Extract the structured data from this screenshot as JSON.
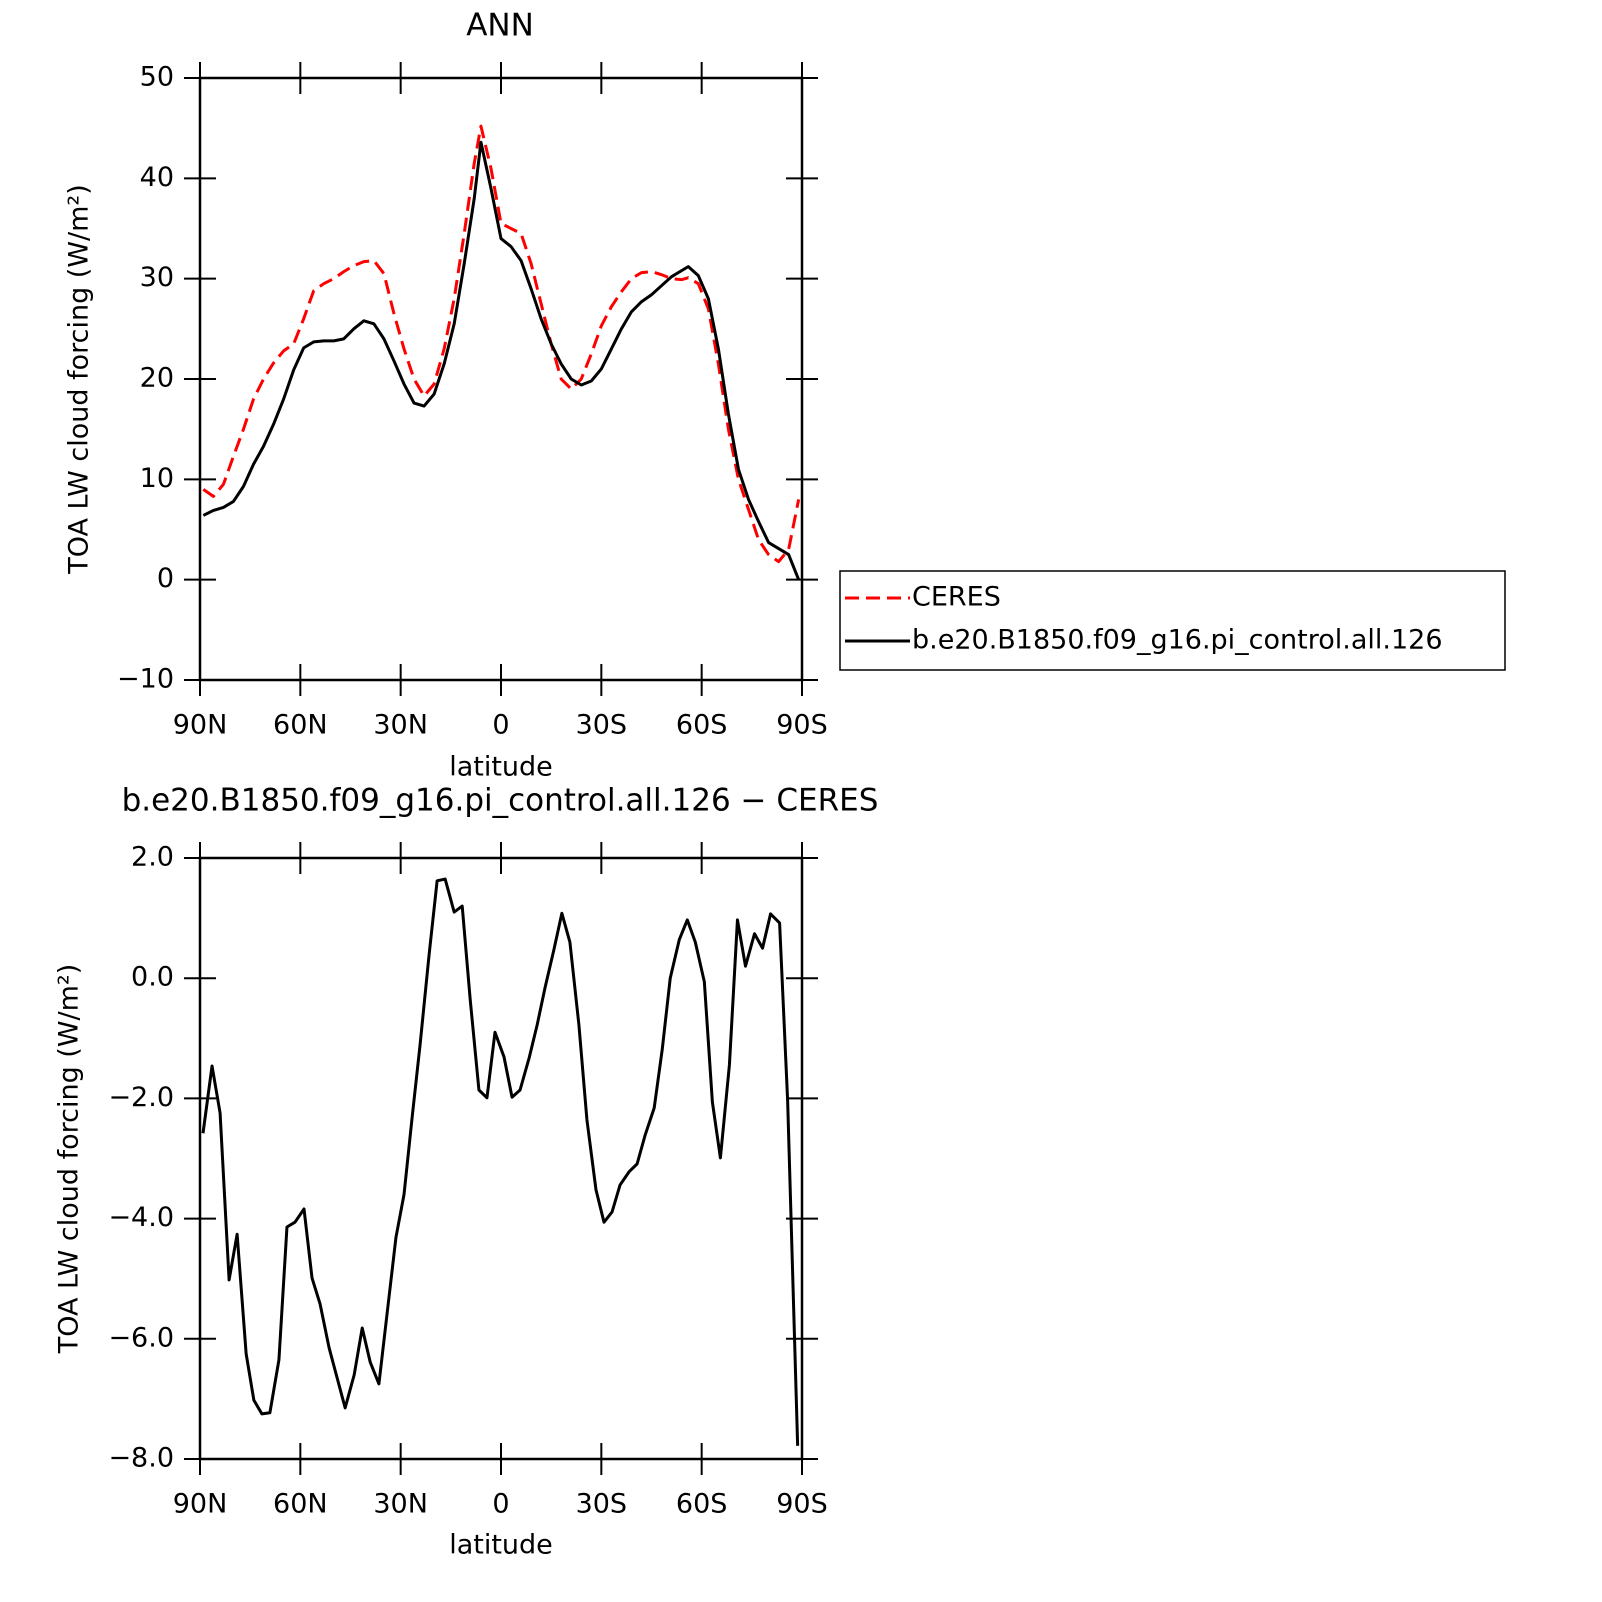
{
  "chart_data": [
    {
      "type": "line",
      "title": "ANN",
      "xlabel": "latitude",
      "ylabel": "TOA LW cloud forcing (W/m²)",
      "xlim": [
        90,
        -90
      ],
      "xticks": [
        {
          "value": 90,
          "label": "90N"
        },
        {
          "value": 60,
          "label": "60N"
        },
        {
          "value": 30,
          "label": "30N"
        },
        0,
        {
          "value": -30,
          "label": "30S"
        },
        {
          "value": -60,
          "label": "60S"
        },
        {
          "value": -90,
          "label": "90S"
        }
      ],
      "ylim": [
        -10,
        50
      ],
      "yticks": [
        {
          "value": -10,
          "label": "−10"
        },
        0,
        10,
        20,
        30,
        40,
        50
      ],
      "legend": "right",
      "x": [
        89,
        86,
        83,
        80,
        77,
        74,
        71,
        68,
        65,
        62,
        59,
        56,
        53,
        50,
        47,
        44,
        41,
        38,
        35,
        32,
        29,
        26,
        23,
        20,
        17,
        14,
        11,
        8,
        6,
        3,
        0,
        -3,
        -6,
        -9,
        -12,
        -15,
        -18,
        -21,
        -24,
        -27,
        -30,
        -33,
        -36,
        -39,
        -42,
        -45,
        -48,
        -51,
        -54,
        -56,
        -59,
        -62,
        -65,
        -68,
        -71,
        -74,
        -77,
        -80,
        -83,
        -86,
        -89
      ],
      "series": [
        {
          "name": "CERES",
          "color": "#ff0000",
          "linestyle": "dashed",
          "values": [
            9.0,
            8.3,
            9.5,
            12.3,
            15.0,
            18.0,
            20.0,
            21.6,
            22.8,
            23.5,
            26.0,
            28.8,
            29.5,
            30.0,
            30.7,
            31.3,
            31.7,
            31.8,
            30.5,
            26.5,
            23.0,
            20.0,
            18.3,
            19.5,
            23.0,
            28.0,
            34.5,
            41.5,
            45.2,
            41.0,
            35.5,
            35.0,
            34.5,
            31.5,
            27.5,
            23.5,
            20.0,
            19.0,
            20.0,
            22.5,
            25.3,
            27.2,
            28.7,
            30.0,
            30.6,
            30.7,
            30.4,
            30.0,
            29.9,
            30.1,
            29.5,
            27.0,
            21.5,
            15.0,
            10.0,
            7.0,
            4.0,
            2.5,
            1.8,
            3.0,
            8.0
          ]
        },
        {
          "name": "b.e20.B1850.f09_g16.pi_control.all.126",
          "color": "#000000",
          "linestyle": "solid",
          "values": [
            6.4,
            6.9,
            7.2,
            7.8,
            9.3,
            11.5,
            13.3,
            15.5,
            18.0,
            20.9,
            23.1,
            23.7,
            23.8,
            23.8,
            24.0,
            25.0,
            25.8,
            25.5,
            24.0,
            21.8,
            19.5,
            17.6,
            17.3,
            18.5,
            21.5,
            25.5,
            31.5,
            38.0,
            43.6,
            39.0,
            34.0,
            33.2,
            31.8,
            29.0,
            26.0,
            23.5,
            21.5,
            20.0,
            19.4,
            19.8,
            21.0,
            23.0,
            25.0,
            26.7,
            27.7,
            28.4,
            29.3,
            30.2,
            30.8,
            31.2,
            30.3,
            28.0,
            23.0,
            16.5,
            11.0,
            8.0,
            5.8,
            3.7,
            3.1,
            2.5,
            0.0
          ]
        }
      ]
    },
    {
      "type": "line",
      "title": "b.e20.B1850.f09_g16.pi_control.all.126 − CERES",
      "xlabel": "latitude",
      "ylabel": "TOA LW cloud forcing (W/m²)",
      "xlim": [
        90,
        -90
      ],
      "xticks": [
        {
          "value": 90,
          "label": "90N"
        },
        {
          "value": 60,
          "label": "60N"
        },
        {
          "value": 30,
          "label": "30N"
        },
        0,
        {
          "value": -30,
          "label": "30S"
        },
        {
          "value": -60,
          "label": "60S"
        },
        {
          "value": -90,
          "label": "90S"
        }
      ],
      "ylim": [
        -8,
        2
      ],
      "yticks": [
        {
          "value": -8,
          "label": "−8.0"
        },
        {
          "value": -6,
          "label": "−6.0"
        },
        {
          "value": -4,
          "label": "−4.0"
        },
        {
          "value": -2,
          "label": "−2.0"
        },
        {
          "value": 0,
          "label": "0.0"
        },
        {
          "value": 2,
          "label": "2.0"
        }
      ],
      "x": [
        89.1,
        86.4,
        84.0,
        81.3,
        78.9,
        76.2,
        73.9,
        71.5,
        69.1,
        66.4,
        64.0,
        61.6,
        58.9,
        56.5,
        54.1,
        51.4,
        49.0,
        46.6,
        43.9,
        41.5,
        39.1,
        36.5,
        34.1,
        31.4,
        29.0,
        26.6,
        24.2,
        21.5,
        19.1,
        16.7,
        14.0,
        11.6,
        9.2,
        6.6,
        4.2,
        1.8,
        -0.9,
        -3.3,
        -5.7,
        -8.4,
        -10.8,
        -13.2,
        -15.8,
        -18.2,
        -20.6,
        -23.3,
        -25.7,
        -28.4,
        -30.8,
        -33.2,
        -35.6,
        -38.3,
        -40.7,
        -43.1,
        -45.8,
        -48.2,
        -50.6,
        -53.3,
        -55.7,
        -58.1,
        -60.8,
        -63.2,
        -65.6,
        -68.3,
        -70.7,
        -73.1,
        -75.8,
        -78.2,
        -80.6,
        -83.3,
        -85.7,
        -88.7
      ],
      "series": [
        {
          "color": "#000000",
          "linestyle": "solid",
          "values": [
            -2.58,
            -1.46,
            -2.24,
            -5.02,
            -4.26,
            -6.25,
            -7.02,
            -7.25,
            -7.23,
            -6.35,
            -4.14,
            -4.06,
            -3.84,
            -4.99,
            -5.42,
            -6.15,
            -6.65,
            -7.15,
            -6.6,
            -5.82,
            -6.39,
            -6.75,
            -5.6,
            -4.31,
            -3.6,
            -2.33,
            -1.11,
            0.39,
            1.62,
            1.65,
            1.1,
            1.2,
            -0.36,
            -1.86,
            -1.99,
            -0.9,
            -1.31,
            -1.98,
            -1.86,
            -1.33,
            -0.78,
            -0.15,
            0.47,
            1.08,
            0.6,
            -0.78,
            -2.36,
            -3.52,
            -4.06,
            -3.89,
            -3.44,
            -3.22,
            -3.09,
            -2.61,
            -2.16,
            -1.19,
            0.0,
            0.64,
            0.97,
            0.6,
            -0.06,
            -2.06,
            -2.99,
            -1.44,
            0.97,
            0.2,
            0.74,
            0.5,
            1.07,
            0.92,
            -2.03,
            -7.78
          ]
        }
      ]
    }
  ]
}
